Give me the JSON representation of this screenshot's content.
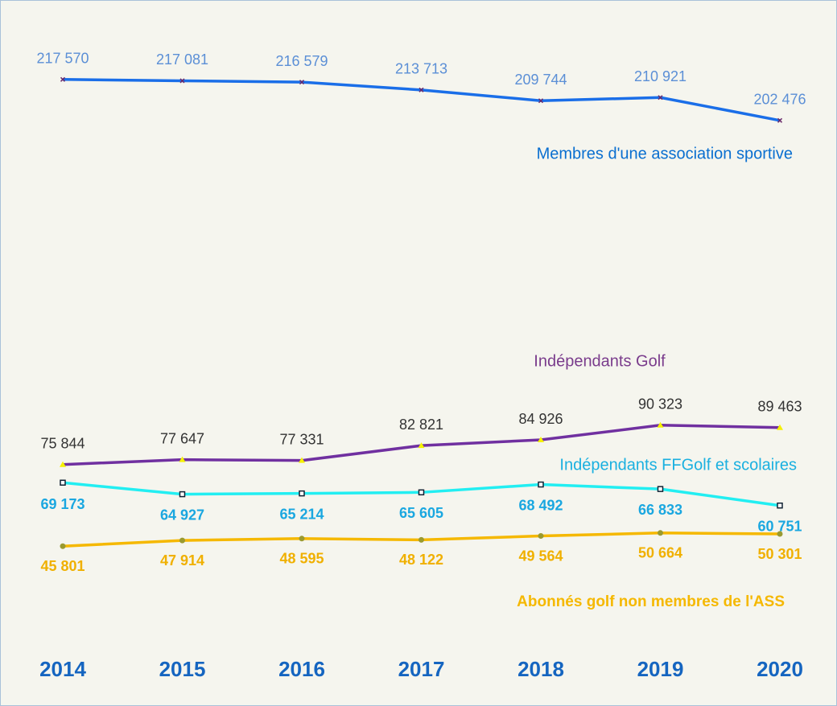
{
  "chart_data": {
    "type": "line",
    "categories": [
      "2014",
      "2015",
      "2016",
      "2017",
      "2018",
      "2019",
      "2020"
    ],
    "ylim": [
      0,
      240000
    ],
    "series": [
      {
        "name": "Membres d'une association sportive",
        "color": "#1a6ee8",
        "values": [
          217570,
          217081,
          216579,
          213713,
          209744,
          210921,
          202476
        ],
        "value_labels": [
          "217 570",
          "217 081",
          "216 579",
          "213 713",
          "209 744",
          "210 921",
          "202 476"
        ]
      },
      {
        "name": "Indépendants Golf",
        "color": "#7030a0",
        "values": [
          75844,
          77647,
          77331,
          82821,
          84926,
          90323,
          89463
        ],
        "value_labels": [
          "75 844",
          "77 647",
          "77 331",
          "82 821",
          "84 926",
          "90 323",
          "89 463"
        ]
      },
      {
        "name": "Indépendants FFGolf et scolaires",
        "color": "#22eef2",
        "values": [
          69173,
          64927,
          65214,
          65605,
          68492,
          66833,
          60751
        ],
        "value_labels": [
          "69 173",
          "64 927",
          "65 214",
          "65 605",
          "68 492",
          "66 833",
          "60 751"
        ]
      },
      {
        "name": "Abonnés golf non membres de l'ASS",
        "color": "#f5b800",
        "values": [
          45801,
          47914,
          48595,
          48122,
          49564,
          50664,
          50301
        ],
        "value_labels": [
          "45 801",
          "47 914",
          "48 595",
          "48 122",
          "49 564",
          "50 664",
          "50 301"
        ]
      }
    ]
  }
}
